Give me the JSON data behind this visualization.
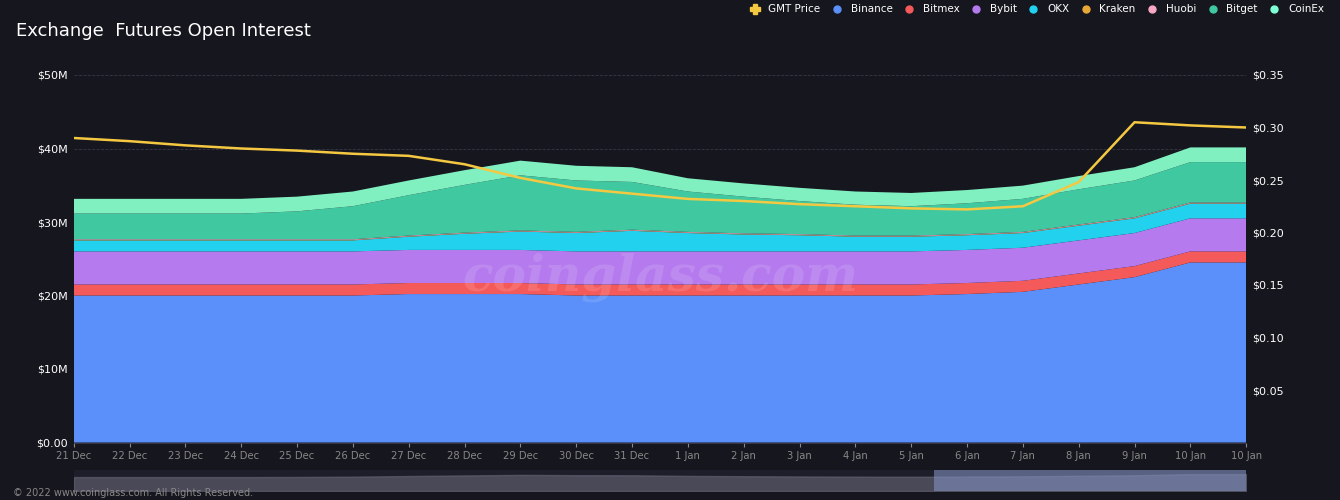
{
  "title": "Exchange  Futures Open Interest",
  "background_color": "#16161e",
  "plot_bg_color": "#16161e",
  "legend_items": [
    "GMT Price",
    "Binance",
    "Bitmex",
    "Bybit",
    "OKX",
    "Kraken",
    "Huobi",
    "Bitget",
    "CoinEx"
  ],
  "legend_colors": [
    "#f5c842",
    "#5b8ff9",
    "#f55a5a",
    "#b57bee",
    "#22d1ee",
    "#e8a838",
    "#f7a8c4",
    "#40c8a0",
    "#7effd4"
  ],
  "x_labels": [
    "21 Dec",
    "22 Dec",
    "23 Dec",
    "24 Dec",
    "25 Dec",
    "26 Dec",
    "27 Dec",
    "28 Dec",
    "29 Dec",
    "30 Dec",
    "31 Dec",
    "1 Jan",
    "2 Jan",
    "3 Jan",
    "4 Jan",
    "5 Jan",
    "6 Jan",
    "7 Jan",
    "8 Jan",
    "9 Jan",
    "10 Jan",
    "10 Jan"
  ],
  "binance_data": [
    20.0,
    20.0,
    20.0,
    20.0,
    20.0,
    20.0,
    20.2,
    20.2,
    20.2,
    20.0,
    20.0,
    20.0,
    20.0,
    20.0,
    20.0,
    20.0,
    20.2,
    20.5,
    21.5,
    22.5,
    24.5,
    24.5
  ],
  "bitmex_data": [
    1.5,
    1.5,
    1.5,
    1.5,
    1.5,
    1.5,
    1.5,
    1.5,
    1.5,
    1.5,
    1.5,
    1.5,
    1.5,
    1.5,
    1.5,
    1.5,
    1.5,
    1.5,
    1.5,
    1.5,
    1.5,
    1.5
  ],
  "bybit_data": [
    4.5,
    4.5,
    4.5,
    4.5,
    4.5,
    4.5,
    4.5,
    4.5,
    4.5,
    4.5,
    4.5,
    4.5,
    4.5,
    4.5,
    4.5,
    4.5,
    4.5,
    4.5,
    4.5,
    4.5,
    4.5,
    4.5
  ],
  "okx_data": [
    1.5,
    1.5,
    1.5,
    1.5,
    1.5,
    1.5,
    1.8,
    2.2,
    2.5,
    2.5,
    2.8,
    2.5,
    2.3,
    2.2,
    2.0,
    2.0,
    2.0,
    2.0,
    2.0,
    2.0,
    2.0,
    2.0
  ],
  "kraken_data": [
    0.05,
    0.05,
    0.05,
    0.05,
    0.05,
    0.05,
    0.05,
    0.05,
    0.05,
    0.05,
    0.05,
    0.05,
    0.05,
    0.05,
    0.05,
    0.05,
    0.05,
    0.05,
    0.05,
    0.05,
    0.05,
    0.05
  ],
  "huobi_data": [
    0.1,
    0.1,
    0.1,
    0.1,
    0.1,
    0.1,
    0.1,
    0.1,
    0.1,
    0.1,
    0.1,
    0.1,
    0.1,
    0.1,
    0.1,
    0.1,
    0.1,
    0.1,
    0.1,
    0.1,
    0.1,
    0.1
  ],
  "bitget_data": [
    3.5,
    3.5,
    3.5,
    3.5,
    3.8,
    4.5,
    5.5,
    6.5,
    7.5,
    7.0,
    6.5,
    5.5,
    5.0,
    4.5,
    4.2,
    4.0,
    4.2,
    4.5,
    4.8,
    5.0,
    5.5,
    5.5
  ],
  "coinex_data": [
    2.0,
    2.0,
    2.0,
    2.0,
    2.0,
    2.0,
    2.0,
    2.0,
    2.0,
    2.0,
    2.0,
    1.8,
    1.8,
    1.8,
    1.8,
    1.8,
    1.8,
    1.8,
    1.8,
    1.8,
    2.0,
    2.0
  ],
  "gmt_price": [
    0.29,
    0.287,
    0.283,
    0.28,
    0.278,
    0.275,
    0.273,
    0.265,
    0.252,
    0.242,
    0.237,
    0.232,
    0.23,
    0.227,
    0.225,
    0.223,
    0.222,
    0.225,
    0.248,
    0.305,
    0.302,
    0.3
  ],
  "watermark": "coinglass.com",
  "footer": "© 2022 www.coinglass.com. All Rights Reserved.",
  "ylim_left": [
    0,
    50
  ],
  "ylim_right": [
    0,
    0.35
  ]
}
